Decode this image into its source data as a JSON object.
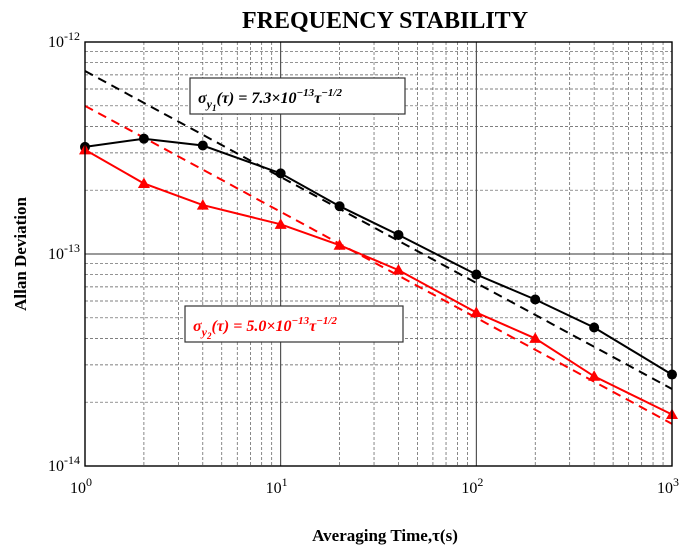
{
  "chart_data": {
    "type": "line",
    "title": "FREQUENCY STABILITY",
    "xlabel": "Averaging Time,τ(s)",
    "ylabel": "Allan Deviation",
    "xscale": "log",
    "yscale": "log",
    "xlim": [
      1,
      1000
    ],
    "ylim": [
      1e-14,
      1e-12
    ],
    "grid": true,
    "x_ticks": [
      {
        "value": 1,
        "base": "10",
        "exp": "0"
      },
      {
        "value": 10,
        "base": "10",
        "exp": "1"
      },
      {
        "value": 100,
        "base": "10",
        "exp": "2"
      },
      {
        "value": 1000,
        "base": "10",
        "exp": "3"
      }
    ],
    "y_ticks": [
      {
        "value": 1e-14,
        "base": "10",
        "exp": "-14"
      },
      {
        "value": 1e-13,
        "base": "10",
        "exp": "-13"
      },
      {
        "value": 1e-12,
        "base": "10",
        "exp": "-12"
      }
    ],
    "x": [
      1,
      2,
      4,
      10,
      20,
      40,
      100,
      200,
      400,
      1000
    ],
    "series": [
      {
        "color": "#000000",
        "marker": "circle",
        "values": [
          3.2e-13,
          3.5e-13,
          3.25e-13,
          2.4e-13,
          1.68e-13,
          1.23e-13,
          8e-14,
          6.1e-14,
          4.5e-14,
          2.7e-14
        ]
      },
      {
        "color": "#ff0000",
        "marker": "triangle",
        "values": [
          3.1e-13,
          2.15e-13,
          1.7e-13,
          1.38e-13,
          1.1e-13,
          8.4e-14,
          5.3e-14,
          4e-14,
          2.65e-14,
          1.75e-14
        ]
      }
    ],
    "fits": [
      {
        "color": "#000000",
        "coefficient": 7.3e-13,
        "exponent": -0.5,
        "dash": true
      },
      {
        "color": "#ff0000",
        "coefficient": 5e-13,
        "exponent": -0.5,
        "dash": true
      }
    ],
    "annotations": [
      {
        "color": "#000000",
        "sigma": "σ",
        "sub": "y",
        "subsub": "1",
        "tau": "(τ) = 7.3×10",
        "exp": "−13",
        "tau2": "τ",
        "exp2": "−1/2"
      },
      {
        "color": "#ff0000",
        "sigma": "σ",
        "sub": "y",
        "subsub": "2",
        "tau": "(τ) = 5.0×10",
        "exp": "−13",
        "tau2": "τ",
        "exp2": "−1/2"
      }
    ]
  }
}
